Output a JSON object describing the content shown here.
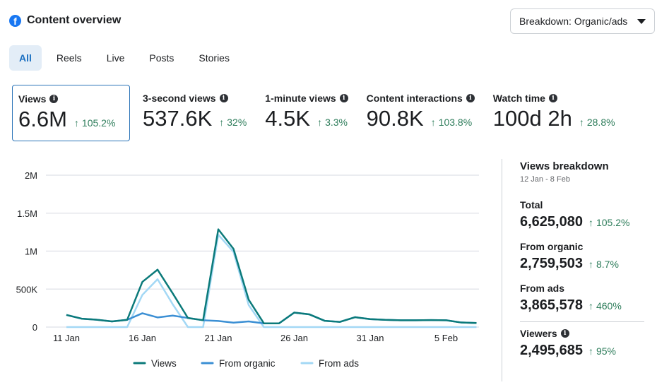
{
  "header": {
    "title": "Content overview",
    "icon": "facebook-icon",
    "breakdown_label": "Breakdown: Organic/ads"
  },
  "tabs": [
    {
      "label": "All",
      "active": true
    },
    {
      "label": "Reels"
    },
    {
      "label": "Live"
    },
    {
      "label": "Posts"
    },
    {
      "label": "Stories"
    }
  ],
  "metrics": [
    {
      "label": "Views",
      "value": "6.6M",
      "change": "105.2%",
      "selected": true
    },
    {
      "label": "3-second views",
      "value": "537.6K",
      "change": "32%"
    },
    {
      "label": "1-minute views",
      "value": "4.5K",
      "change": "3.3%"
    },
    {
      "label": "Content interactions",
      "value": "90.8K",
      "change": "103.8%"
    },
    {
      "label": "Watch time",
      "value": "100d 2h",
      "change": "28.8%"
    }
  ],
  "breakdown": {
    "title": "Views breakdown",
    "date_range": "12 Jan - 8 Feb",
    "items": [
      {
        "label": "Total",
        "value": "6,625,080",
        "change": "105.2%"
      },
      {
        "label": "From organic",
        "value": "2,759,503",
        "change": "8.7%"
      },
      {
        "label": "From ads",
        "value": "3,865,578",
        "change": "460%"
      },
      {
        "label": "Viewers",
        "value": "2,495,685",
        "change": "95%",
        "info": true
      }
    ]
  },
  "colors": {
    "views": "#0b7a7a",
    "organic": "#3b8fd4",
    "ads": "#a3d8f5",
    "positive": "#2e7d5b",
    "accent": "#1a6fc1"
  },
  "chart_data": {
    "type": "line",
    "x": [
      "11 Jan",
      "12 Jan",
      "13 Jan",
      "14 Jan",
      "15 Jan",
      "16 Jan",
      "17 Jan",
      "18 Jan",
      "19 Jan",
      "20 Jan",
      "21 Jan",
      "22 Jan",
      "23 Jan",
      "24 Jan",
      "25 Jan",
      "26 Jan",
      "27 Jan",
      "28 Jan",
      "29 Jan",
      "30 Jan",
      "31 Jan",
      "1 Feb",
      "2 Feb",
      "3 Feb",
      "4 Feb",
      "5 Feb",
      "6 Feb",
      "7 Feb"
    ],
    "xticks": [
      "11 Jan",
      "16 Jan",
      "21 Jan",
      "26 Jan",
      "31 Jan",
      "5 Feb"
    ],
    "yticks": [
      {
        "v": 0,
        "label": "0"
      },
      {
        "v": 500000,
        "label": "500K"
      },
      {
        "v": 1000000,
        "label": "1M"
      },
      {
        "v": 1500000,
        "label": "1.5M"
      },
      {
        "v": 2000000,
        "label": "2M"
      }
    ],
    "ylim": [
      0,
      2000000
    ],
    "grid": true,
    "legend_position": "bottom",
    "series": [
      {
        "name": "Views",
        "color": "#0b7a7a",
        "values": [
          160000,
          111000,
          97000,
          74000,
          95000,
          595000,
          756000,
          444000,
          120000,
          90000,
          1287000,
          1030000,
          361000,
          49000,
          49000,
          191000,
          167000,
          83000,
          68000,
          130000,
          105000,
          95000,
          90000,
          90000,
          92000,
          90000,
          60000,
          53000
        ]
      },
      {
        "name": "From organic",
        "color": "#3b8fd4",
        "values": [
          160000,
          111000,
          97000,
          74000,
          95000,
          182000,
          127000,
          151000,
          120000,
          90000,
          80000,
          58000,
          74000,
          49000,
          49000,
          191000,
          167000,
          83000,
          68000,
          130000,
          105000,
          95000,
          90000,
          90000,
          92000,
          90000,
          60000,
          53000
        ]
      },
      {
        "name": "From ads",
        "color": "#a3d8f5",
        "values": [
          0,
          0,
          0,
          0,
          0,
          423000,
          630000,
          300000,
          0,
          0,
          1216000,
          990000,
          290000,
          0,
          0,
          0,
          0,
          0,
          0,
          0,
          0,
          0,
          0,
          0,
          0,
          0,
          0,
          0
        ]
      }
    ]
  }
}
